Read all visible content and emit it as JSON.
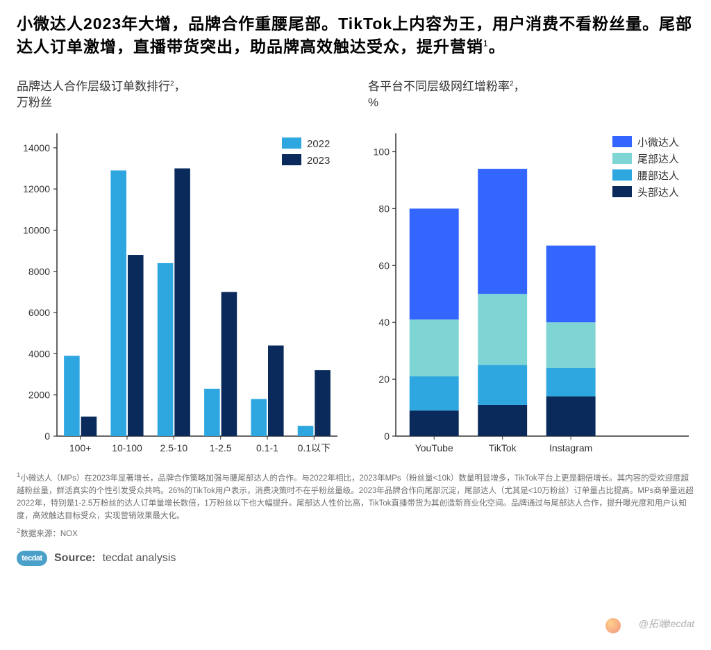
{
  "headline": "小微达人2023年大增，品牌合作重腰尾部。TikTok上内容为王，用户消费不看粉丝量。尾部达人订单激增，直播带货突出，助品牌高效触达受众，提升营销",
  "headline_sup": "1",
  "headline_suffix": "。",
  "left_chart": {
    "title_line1": "品牌达人合作层级订单数排行",
    "title_sup": "2",
    "title_suffix": "，",
    "title_line2": "万粉丝",
    "type": "grouped-bar",
    "categories": [
      "100+",
      "10-100",
      "2.5-10",
      "1-2.5",
      "0.1-1",
      "0.1以下"
    ],
    "series": [
      {
        "name": "2022",
        "color": "#2ea7e0",
        "values": [
          3900,
          12900,
          8400,
          2300,
          1800,
          500
        ]
      },
      {
        "name": "2023",
        "color": "#0a2a5c",
        "values": [
          950,
          8800,
          13000,
          7000,
          4400,
          3200
        ]
      }
    ],
    "y_ticks": [
      0,
      2000,
      4000,
      6000,
      8000,
      10000,
      12000,
      14000
    ],
    "ylim": [
      0,
      14500
    ],
    "axis_color": "#333333",
    "tick_fontsize": 14
  },
  "right_chart": {
    "title_line1": "各平台不同层级网红增粉率",
    "title_sup": "2",
    "title_suffix": "，",
    "title_line2": "%",
    "type": "stacked-bar",
    "categories": [
      "YouTube",
      "TikTok",
      "Instagram"
    ],
    "stack_order_bottom_to_top": [
      "头部达人",
      "腰部达人",
      "尾部达人",
      "小微达人"
    ],
    "stacks": {
      "头部达人": {
        "color": "#0a2a5c",
        "values": [
          9,
          11,
          14
        ]
      },
      "腰部达人": {
        "color": "#2ea7e0",
        "values": [
          12,
          14,
          10
        ]
      },
      "尾部达人": {
        "color": "#7fd4d4",
        "values": [
          20,
          25,
          16
        ]
      },
      "小微达人": {
        "color": "#3366ff",
        "values": [
          39,
          44,
          27
        ]
      }
    },
    "y_ticks": [
      0,
      20,
      40,
      60,
      80,
      100
    ],
    "ylim": [
      0,
      105
    ],
    "axis_color": "#333333",
    "tick_fontsize": 14,
    "legend_order": [
      "小微达人",
      "尾部达人",
      "腰部达人",
      "头部达人"
    ]
  },
  "footnotes": {
    "fn1_prefix": "1",
    "fn1": "小微达人（MPs）在2023年显著增长，品牌合作策略加强与腰尾部达人的合作。与2022年相比，2023年MPs（粉丝量<10k）数量明显增多，TikTok平台上更是翻倍增长。其内容的受欢迎度超越粉丝量，鲜活真实的个性引发受众共鸣。26%的TikTok用户表示，消费决策时不在乎粉丝量级。2023年品牌合作向尾部沉淀，尾部达人（尤其是<10万粉丝）订单量占比提高。MPs商单量远超2022年，特别是1-2.5万粉丝的达人订单量增长数倍，1万粉丝以下也大幅提升。尾部达人性价比高，TikTok直播带货为其创造新商业化空间。品牌通过与尾部达人合作，提升曝光度和用户认知度，高效触达目标受众，实现营销效果最大化。",
    "fn2_prefix": "2",
    "fn2": "数据来源：NOX"
  },
  "source": {
    "logo_text": "tecdat",
    "label": "Source:",
    "value": "tecdat analysis"
  },
  "watermark": "@拓端tecdat"
}
